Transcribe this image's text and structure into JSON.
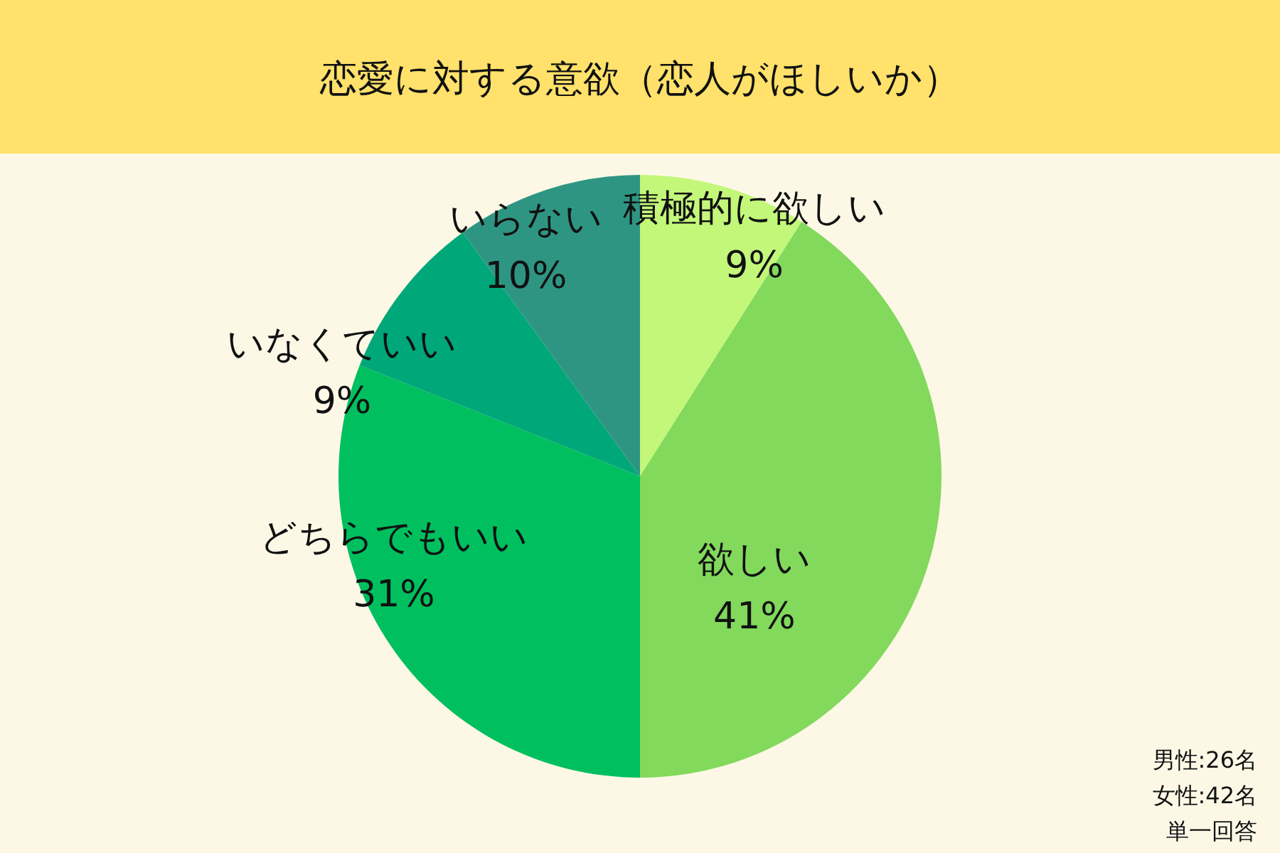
{
  "chart_data": {
    "type": "pie",
    "title": "恋愛に対する意欲（恋人がほしいか）",
    "categories": [
      "積極的に欲しい",
      "欲しい",
      "どちらでもいい",
      "いなくていい",
      "いらない"
    ],
    "values": [
      9,
      41,
      31,
      9,
      10
    ],
    "colors": [
      "#c3f77a",
      "#82d95c",
      "#00bf5f",
      "#00a779",
      "#2f9583"
    ],
    "value_labels": [
      "9%",
      "41%",
      "31%",
      "9%",
      "10%"
    ],
    "legend": false,
    "annotations": [
      "男性:26名",
      "女性:42名",
      "単一回答"
    ]
  }
}
